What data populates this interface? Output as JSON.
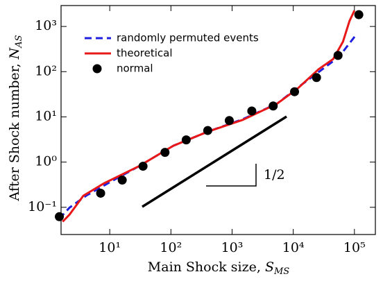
{
  "chart_data": {
    "type": "line",
    "xlabel": "Main Shock size, ",
    "xlabel_symbol": "S",
    "xlabel_sub": "MS",
    "ylabel": "After Shock number, ",
    "ylabel_symbol": "N",
    "ylabel_sub": "AS",
    "annotation": "1/2",
    "log_x": true,
    "log_y": true,
    "legend": "upper left",
    "xlim": [
      1.6,
      220000
    ],
    "ylim": [
      0.025,
      2900
    ],
    "xticks": [
      {
        "value": 10,
        "label": "10¹"
      },
      {
        "value": 100,
        "label": "10²"
      },
      {
        "value": 1000,
        "label": "10³"
      },
      {
        "value": 10000,
        "label": "10⁴"
      },
      {
        "value": 100000,
        "label": "10⁵"
      }
    ],
    "yticks": [
      {
        "value": 0.1,
        "label": "10⁻¹"
      },
      {
        "value": 1,
        "label": "10⁰"
      },
      {
        "value": 10,
        "label": "10¹"
      },
      {
        "value": 100,
        "label": "10²"
      },
      {
        "value": 1000,
        "label": "10³"
      }
    ],
    "series": [
      {
        "name": "randomly permuted events",
        "color": "#1f1fe0",
        "style": "dashed",
        "x": [
          1.5,
          2.2,
          4.2,
          10.5,
          30,
          110,
          400,
          1500,
          5400,
          11700,
          26000,
          56000,
          107000
        ],
        "values": [
          0.056,
          0.098,
          0.184,
          0.37,
          0.81,
          2.3,
          4.7,
          8.9,
          19.5,
          44,
          98,
          213,
          660
        ]
      },
      {
        "name": "theoretical",
        "color": "#e81818",
        "style": "solid",
        "x": [
          1.7,
          2.2,
          3.7,
          8.1,
          30,
          110,
          400,
          1500,
          5400,
          11700,
          26000,
          45000,
          65000,
          83000,
          100000
        ],
        "values": [
          0.048,
          0.069,
          0.18,
          0.34,
          0.81,
          2.3,
          4.7,
          8.6,
          19.5,
          42,
          113,
          190,
          460,
          1320,
          2250
        ]
      },
      {
        "name": "normal",
        "color": "#000000",
        "style": "markers",
        "x": [
          1.5,
          7.1,
          16,
          35,
          80,
          178,
          400,
          900,
          2100,
          4700,
          10500,
          24000,
          54000,
          118000
        ],
        "values": [
          0.062,
          0.205,
          0.4,
          0.81,
          1.64,
          3.1,
          5.0,
          8.3,
          13.5,
          17.4,
          36,
          74,
          229,
          1820
        ]
      }
    ]
  }
}
